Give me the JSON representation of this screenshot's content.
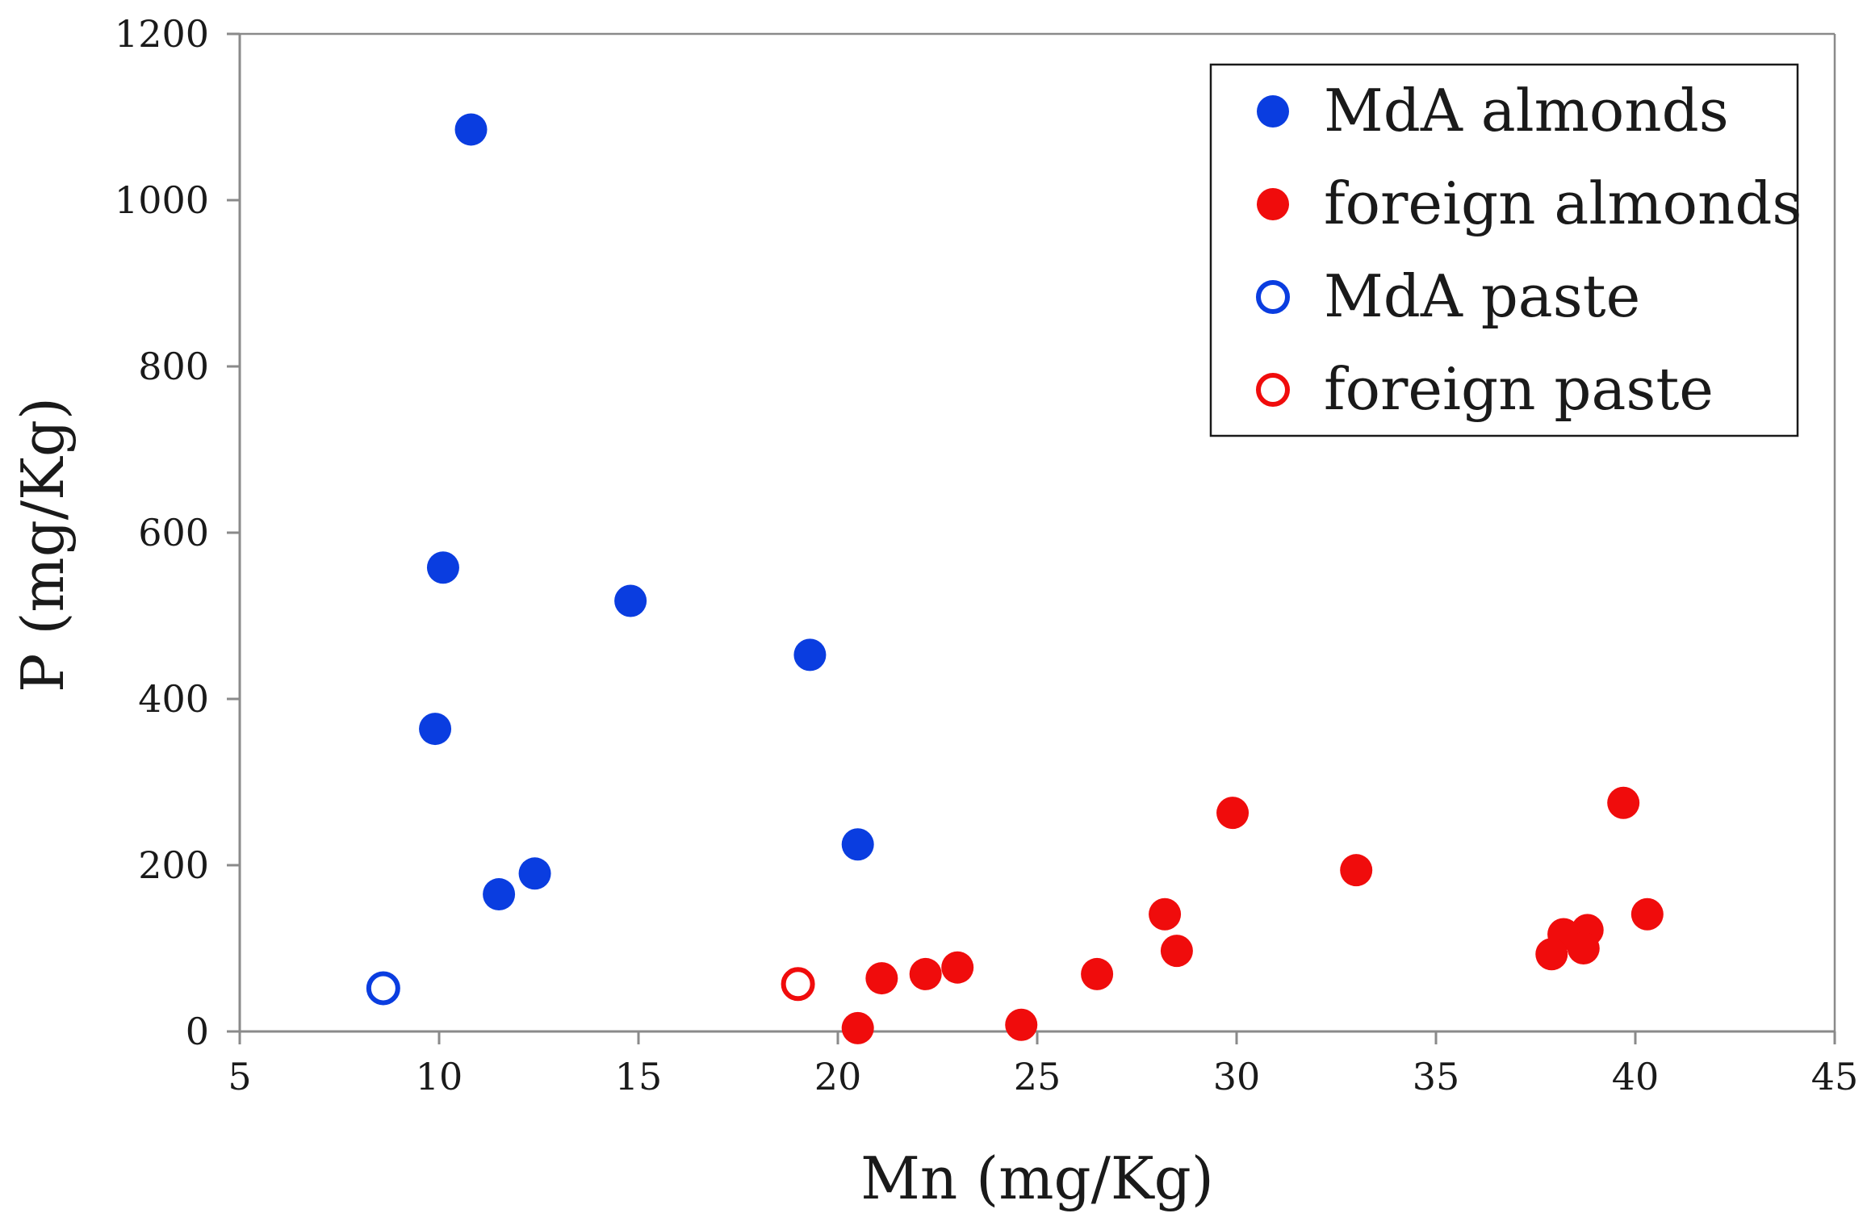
{
  "chart_data": {
    "type": "scatter",
    "title": "",
    "xlabel": "Mn (mg/Kg)",
    "ylabel": "P (mg/Kg)",
    "xlim": [
      5,
      45
    ],
    "ylim": [
      0,
      1200
    ],
    "xticks": [
      5,
      10,
      15,
      20,
      25,
      30,
      35,
      40,
      45
    ],
    "yticks": [
      0,
      200,
      400,
      600,
      800,
      1000,
      1200
    ],
    "grid": false,
    "legend_position": "top-right",
    "series": [
      {
        "name": "MdA almonds",
        "color": "#0a3de0",
        "marker": "filled-circle",
        "points": [
          {
            "x": 10.8,
            "y": 1085
          },
          {
            "x": 10.1,
            "y": 558
          },
          {
            "x": 14.8,
            "y": 518
          },
          {
            "x": 19.3,
            "y": 453
          },
          {
            "x": 9.9,
            "y": 364
          },
          {
            "x": 20.5,
            "y": 225
          },
          {
            "x": 12.4,
            "y": 190
          },
          {
            "x": 11.5,
            "y": 165
          }
        ]
      },
      {
        "name": "foreign almonds",
        "color": "#f00c0c",
        "marker": "filled-circle",
        "points": [
          {
            "x": 39.7,
            "y": 275
          },
          {
            "x": 29.9,
            "y": 263
          },
          {
            "x": 33.0,
            "y": 194
          },
          {
            "x": 28.2,
            "y": 141
          },
          {
            "x": 40.3,
            "y": 141
          },
          {
            "x": 38.8,
            "y": 122
          },
          {
            "x": 38.2,
            "y": 117
          },
          {
            "x": 38.7,
            "y": 100
          },
          {
            "x": 28.5,
            "y": 97
          },
          {
            "x": 37.9,
            "y": 93
          },
          {
            "x": 23.0,
            "y": 77
          },
          {
            "x": 22.2,
            "y": 69
          },
          {
            "x": 26.5,
            "y": 69
          },
          {
            "x": 21.1,
            "y": 64
          },
          {
            "x": 24.6,
            "y": 8
          },
          {
            "x": 20.5,
            "y": 4
          }
        ]
      },
      {
        "name": "MdA paste",
        "color": "#0a3de0",
        "marker": "hollow-circle",
        "points": [
          {
            "x": 8.6,
            "y": 52
          }
        ]
      },
      {
        "name": "foreign paste",
        "color": "#f00c0c",
        "marker": "hollow-circle",
        "points": [
          {
            "x": 19.0,
            "y": 57
          }
        ]
      }
    ]
  }
}
